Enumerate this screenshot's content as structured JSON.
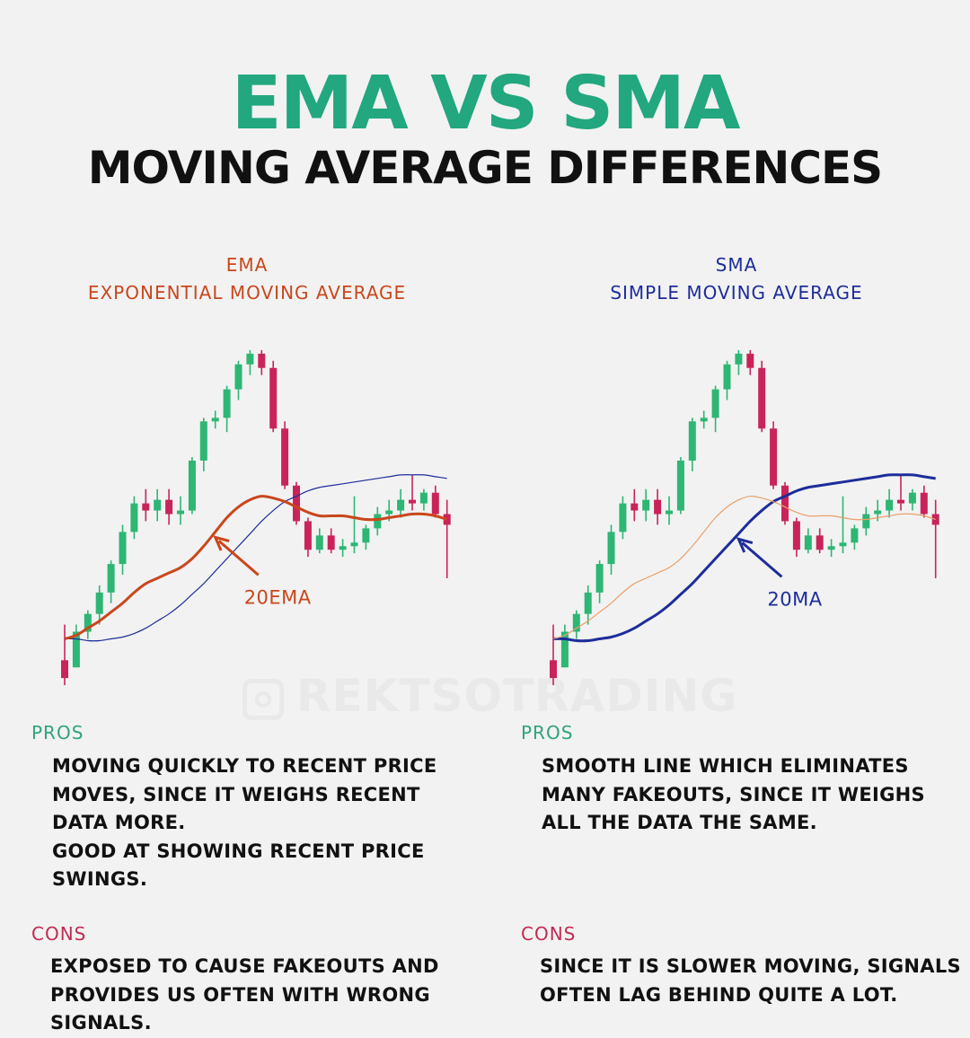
{
  "header": {
    "title": "EMA VS SMA",
    "subtitle": "MOVING AVERAGE DIFFERENCES"
  },
  "watermark": "REKTSOTRADING",
  "colors": {
    "accent_green": "#22a77f",
    "ema_orange": "#c9471c",
    "sma_blue": "#1d2d9a",
    "bull_candle": "#2db674",
    "bear_candle": "#c9245a",
    "pros_green": "#2fa37e",
    "cons_red": "#c22b52"
  },
  "panels": {
    "ema": {
      "abbr": "EMA",
      "name": "EXPONENTIAL MOVING AVERAGE",
      "annotation": "20EMA",
      "pros_label": "PROS",
      "pros_lines": [
        "MOVING QUICKLY TO RECENT PRICE",
        "MOVES, SINCE IT WEIGHS RECENT",
        "DATA MORE.",
        "GOOD AT SHOWING RECENT PRICE",
        "SWINGS."
      ],
      "cons_label": "CONS",
      "cons_lines": [
        "EXPOSED TO CAUSE FAKEOUTS AND",
        "PROVIDES US OFTEN WITH WRONG",
        "SIGNALS."
      ]
    },
    "sma": {
      "abbr": "SMA",
      "name": "SIMPLE MOVING AVERAGE",
      "annotation": "20MA",
      "pros_label": "PROS",
      "pros_lines": [
        "SMOOTH LINE WHICH ELIMINATES",
        "MANY FAKEOUTS, SINCE IT WEIGHS",
        "ALL THE DATA THE SAME."
      ],
      "cons_label": "CONS",
      "cons_lines": [
        "SINCE IT IS SLOWER MOVING, SIGNALS",
        "OFTEN LAG BEHIND QUITE A LOT."
      ]
    }
  },
  "chart_data": [
    {
      "type": "candlestick",
      "highlight": "ema",
      "ylim": [
        0,
        100
      ],
      "candles": [
        {
          "o": 10,
          "h": 20,
          "l": 3,
          "c": 5
        },
        {
          "o": 8,
          "h": 20,
          "l": 8,
          "c": 18
        },
        {
          "o": 18,
          "h": 24,
          "l": 16,
          "c": 23
        },
        {
          "o": 23,
          "h": 31,
          "l": 20,
          "c": 29
        },
        {
          "o": 29,
          "h": 38,
          "l": 26,
          "c": 37
        },
        {
          "o": 37,
          "h": 48,
          "l": 34,
          "c": 46
        },
        {
          "o": 46,
          "h": 56,
          "l": 44,
          "c": 54
        },
        {
          "o": 54,
          "h": 58,
          "l": 49,
          "c": 52
        },
        {
          "o": 52,
          "h": 58,
          "l": 49,
          "c": 55
        },
        {
          "o": 55,
          "h": 58,
          "l": 48,
          "c": 51
        },
        {
          "o": 51,
          "h": 56,
          "l": 48,
          "c": 52
        },
        {
          "o": 52,
          "h": 67,
          "l": 51,
          "c": 66
        },
        {
          "o": 66,
          "h": 78,
          "l": 63,
          "c": 77
        },
        {
          "o": 77,
          "h": 80,
          "l": 75,
          "c": 78
        },
        {
          "o": 78,
          "h": 87,
          "l": 74,
          "c": 86
        },
        {
          "o": 86,
          "h": 94,
          "l": 83,
          "c": 93
        },
        {
          "o": 93,
          "h": 97,
          "l": 90,
          "c": 96
        },
        {
          "o": 96,
          "h": 97,
          "l": 90,
          "c": 92
        },
        {
          "o": 92,
          "h": 94,
          "l": 74,
          "c": 75
        },
        {
          "o": 75,
          "h": 77,
          "l": 58,
          "c": 59
        },
        {
          "o": 59,
          "h": 60,
          "l": 48,
          "c": 49
        },
        {
          "o": 49,
          "h": 50,
          "l": 39,
          "c": 41
        },
        {
          "o": 41,
          "h": 47,
          "l": 40,
          "c": 45
        },
        {
          "o": 45,
          "h": 47,
          "l": 40,
          "c": 41
        },
        {
          "o": 41,
          "h": 44,
          "l": 39,
          "c": 42
        },
        {
          "o": 42,
          "h": 56,
          "l": 40,
          "c": 43
        },
        {
          "o": 43,
          "h": 48,
          "l": 41,
          "c": 47
        },
        {
          "o": 47,
          "h": 53,
          "l": 45,
          "c": 51
        },
        {
          "o": 51,
          "h": 55,
          "l": 49,
          "c": 52
        },
        {
          "o": 52,
          "h": 58,
          "l": 50,
          "c": 55
        },
        {
          "o": 55,
          "h": 62,
          "l": 52,
          "c": 54
        },
        {
          "o": 54,
          "h": 58,
          "l": 52,
          "c": 57
        },
        {
          "o": 57,
          "h": 59,
          "l": 50,
          "c": 51
        },
        {
          "o": 51,
          "h": 55,
          "l": 33,
          "c": 48
        }
      ],
      "ema": [
        16,
        17,
        19,
        21,
        23.5,
        26,
        29,
        31.5,
        33,
        34.5,
        36,
        38.5,
        42,
        46,
        50,
        53,
        55,
        56,
        55.5,
        54.5,
        53,
        51.5,
        50.5,
        50.5,
        50.5,
        50,
        49.5,
        49.5,
        50,
        50.5,
        51,
        51,
        50.5,
        49.5
      ],
      "sma": [
        16,
        16,
        15.5,
        15.5,
        16,
        16.5,
        17.5,
        19,
        21,
        23,
        25.5,
        28.5,
        31.5,
        35,
        38.5,
        42,
        45.5,
        49,
        52,
        54.5,
        56,
        57.5,
        58.5,
        59,
        59.5,
        60,
        60.5,
        61,
        61.5,
        62,
        62,
        62,
        61.5,
        61
      ]
    },
    {
      "type": "candlestick",
      "highlight": "sma",
      "ylim": [
        0,
        100
      ],
      "candles": [
        {
          "o": 10,
          "h": 20,
          "l": 3,
          "c": 5
        },
        {
          "o": 8,
          "h": 20,
          "l": 8,
          "c": 18
        },
        {
          "o": 18,
          "h": 24,
          "l": 16,
          "c": 23
        },
        {
          "o": 23,
          "h": 31,
          "l": 20,
          "c": 29
        },
        {
          "o": 29,
          "h": 38,
          "l": 26,
          "c": 37
        },
        {
          "o": 37,
          "h": 48,
          "l": 34,
          "c": 46
        },
        {
          "o": 46,
          "h": 56,
          "l": 44,
          "c": 54
        },
        {
          "o": 54,
          "h": 58,
          "l": 49,
          "c": 52
        },
        {
          "o": 52,
          "h": 58,
          "l": 49,
          "c": 55
        },
        {
          "o": 55,
          "h": 58,
          "l": 48,
          "c": 51
        },
        {
          "o": 51,
          "h": 56,
          "l": 48,
          "c": 52
        },
        {
          "o": 52,
          "h": 67,
          "l": 51,
          "c": 66
        },
        {
          "o": 66,
          "h": 78,
          "l": 63,
          "c": 77
        },
        {
          "o": 77,
          "h": 80,
          "l": 75,
          "c": 78
        },
        {
          "o": 78,
          "h": 87,
          "l": 74,
          "c": 86
        },
        {
          "o": 86,
          "h": 94,
          "l": 83,
          "c": 93
        },
        {
          "o": 93,
          "h": 97,
          "l": 90,
          "c": 96
        },
        {
          "o": 96,
          "h": 97,
          "l": 90,
          "c": 92
        },
        {
          "o": 92,
          "h": 94,
          "l": 74,
          "c": 75
        },
        {
          "o": 75,
          "h": 77,
          "l": 58,
          "c": 59
        },
        {
          "o": 59,
          "h": 60,
          "l": 48,
          "c": 49
        },
        {
          "o": 49,
          "h": 50,
          "l": 39,
          "c": 41
        },
        {
          "o": 41,
          "h": 47,
          "l": 40,
          "c": 45
        },
        {
          "o": 45,
          "h": 47,
          "l": 40,
          "c": 41
        },
        {
          "o": 41,
          "h": 44,
          "l": 39,
          "c": 42
        },
        {
          "o": 42,
          "h": 56,
          "l": 40,
          "c": 43
        },
        {
          "o": 43,
          "h": 48,
          "l": 41,
          "c": 47
        },
        {
          "o": 47,
          "h": 53,
          "l": 45,
          "c": 51
        },
        {
          "o": 51,
          "h": 55,
          "l": 49,
          "c": 52
        },
        {
          "o": 52,
          "h": 58,
          "l": 50,
          "c": 55
        },
        {
          "o": 55,
          "h": 62,
          "l": 52,
          "c": 54
        },
        {
          "o": 54,
          "h": 58,
          "l": 52,
          "c": 57
        },
        {
          "o": 57,
          "h": 59,
          "l": 50,
          "c": 51
        },
        {
          "o": 51,
          "h": 55,
          "l": 33,
          "c": 48
        }
      ],
      "ema": [
        16,
        17,
        19,
        21,
        23.5,
        26,
        29,
        31.5,
        33,
        34.5,
        36,
        38.5,
        42,
        46,
        50,
        53,
        55,
        56,
        55.5,
        54.5,
        53,
        51.5,
        50.5,
        50.5,
        50.5,
        50,
        49.5,
        49.5,
        50,
        50.5,
        51,
        51,
        50.5,
        49.5
      ],
      "sma": [
        16,
        16,
        15.5,
        15.5,
        16,
        16.5,
        17.5,
        19,
        21,
        23,
        25.5,
        28.5,
        31.5,
        35,
        38.5,
        42,
        45.5,
        49,
        52,
        54.5,
        56,
        57.5,
        58.5,
        59,
        59.5,
        60,
        60.5,
        61,
        61.5,
        62,
        62,
        62,
        61.5,
        61
      ]
    }
  ]
}
